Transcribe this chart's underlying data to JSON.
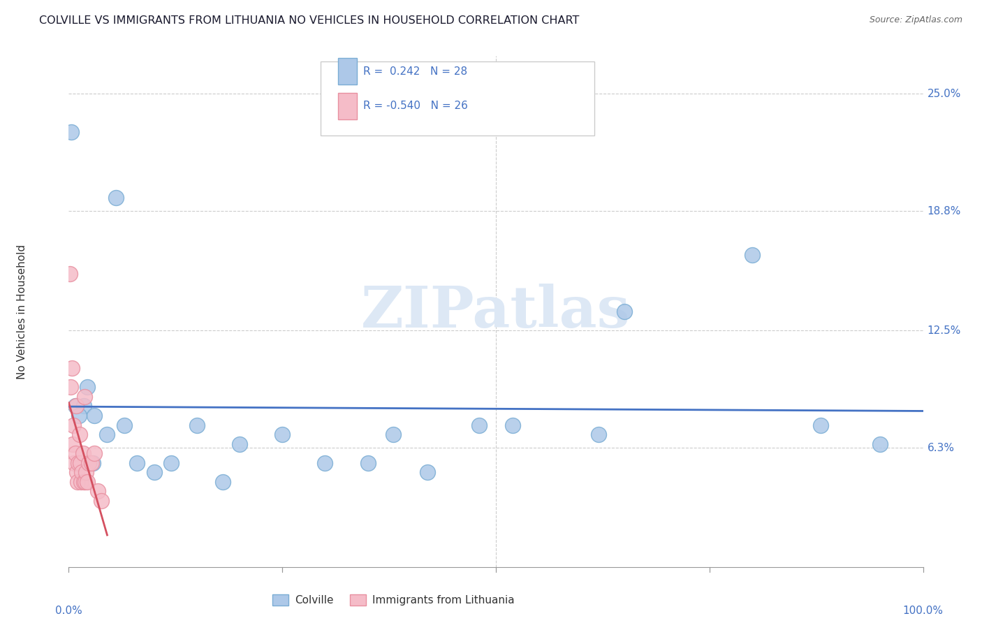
{
  "title": "COLVILLE VS IMMIGRANTS FROM LITHUANIA NO VEHICLES IN HOUSEHOLD CORRELATION CHART",
  "source": "Source: ZipAtlas.com",
  "ylabel": "No Vehicles in Household",
  "y_tick_labels": [
    "6.3%",
    "12.5%",
    "18.8%",
    "25.0%"
  ],
  "y_tick_values": [
    6.3,
    12.5,
    18.8,
    25.0
  ],
  "background_color": "#ffffff",
  "watermark_text": "ZIPatlas",
  "colville_color": "#adc8e8",
  "colville_edge": "#7aadd4",
  "lithuania_color": "#f5bcc8",
  "lithuania_edge": "#e890a0",
  "line_blue": "#4472c4",
  "line_pink": "#d45060",
  "label_color": "#4472c4",
  "title_color": "#1a1a2e",
  "colville_points_x": [
    0.3,
    5.5,
    0.8,
    1.8,
    2.2,
    3.0,
    4.5,
    6.5,
    8.0,
    12.0,
    15.0,
    20.0,
    25.0,
    30.0,
    38.0,
    42.0,
    48.0,
    52.0,
    62.0,
    65.0,
    80.0,
    88.0,
    95.0,
    1.2,
    2.8,
    10.0,
    18.0,
    35.0
  ],
  "colville_points_y": [
    23.0,
    19.5,
    8.5,
    8.5,
    9.5,
    8.0,
    7.0,
    7.5,
    5.5,
    5.5,
    7.5,
    6.5,
    7.0,
    5.5,
    7.0,
    5.0,
    7.5,
    7.5,
    7.0,
    13.5,
    16.5,
    7.5,
    6.5,
    8.0,
    5.5,
    5.0,
    4.5,
    5.5
  ],
  "lithuania_points_x": [
    0.15,
    0.25,
    0.35,
    0.45,
    0.55,
    0.65,
    0.75,
    0.85,
    0.95,
    1.05,
    1.15,
    1.25,
    1.35,
    1.45,
    1.55,
    1.65,
    1.75,
    1.85,
    1.95,
    2.05,
    2.15,
    2.35,
    2.65,
    3.0,
    3.4,
    3.8
  ],
  "lithuania_points_y": [
    15.5,
    9.5,
    10.5,
    6.5,
    7.5,
    5.5,
    6.0,
    8.5,
    5.0,
    4.5,
    5.5,
    7.0,
    5.5,
    4.5,
    5.0,
    6.0,
    4.5,
    9.0,
    4.5,
    5.0,
    4.5,
    5.5,
    5.5,
    6.0,
    4.0,
    3.5
  ],
  "xlim": [
    0,
    100
  ],
  "ylim": [
    0,
    27
  ],
  "scatter_size": 250
}
